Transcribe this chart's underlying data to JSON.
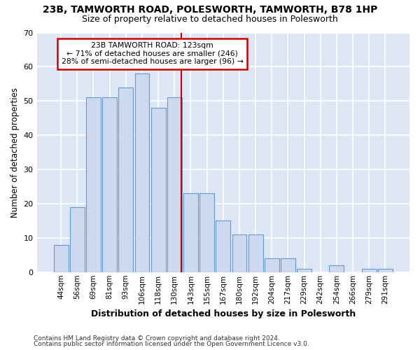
{
  "title1": "23B, TAMWORTH ROAD, POLESWORTH, TAMWORTH, B78 1HP",
  "title2": "Size of property relative to detached houses in Polesworth",
  "xlabel": "Distribution of detached houses by size in Polesworth",
  "ylabel": "Number of detached properties",
  "categories": [
    "44sqm",
    "56sqm",
    "69sqm",
    "81sqm",
    "93sqm",
    "106sqm",
    "118sqm",
    "130sqm",
    "143sqm",
    "155sqm",
    "167sqm",
    "180sqm",
    "192sqm",
    "204sqm",
    "217sqm",
    "229sqm",
    "242sqm",
    "254sqm",
    "266sqm",
    "279sqm",
    "291sqm"
  ],
  "values": [
    8,
    19,
    51,
    51,
    54,
    58,
    48,
    51,
    23,
    23,
    15,
    11,
    11,
    4,
    4,
    1,
    0,
    2,
    0,
    1,
    1
  ],
  "bar_color": "#ccd9ee",
  "bar_edge_color": "#6699cc",
  "vline_pos": 7.42,
  "vline_color": "#cc0000",
  "annotation_line1": "23B TAMWORTH ROAD: 123sqm",
  "annotation_line2": "← 71% of detached houses are smaller (246)",
  "annotation_line3": "28% of semi-detached houses are larger (96) →",
  "annotation_box_color": "#ffffff",
  "annotation_box_edge": "#cc0000",
  "ylim": [
    0,
    70
  ],
  "yticks": [
    0,
    10,
    20,
    30,
    40,
    50,
    60,
    70
  ],
  "bg_color": "#dce6f5",
  "grid_color": "#ffffff",
  "fig_bg": "#ffffff",
  "footer1": "Contains HM Land Registry data © Crown copyright and database right 2024.",
  "footer2": "Contains public sector information licensed under the Open Government Licence v3.0."
}
